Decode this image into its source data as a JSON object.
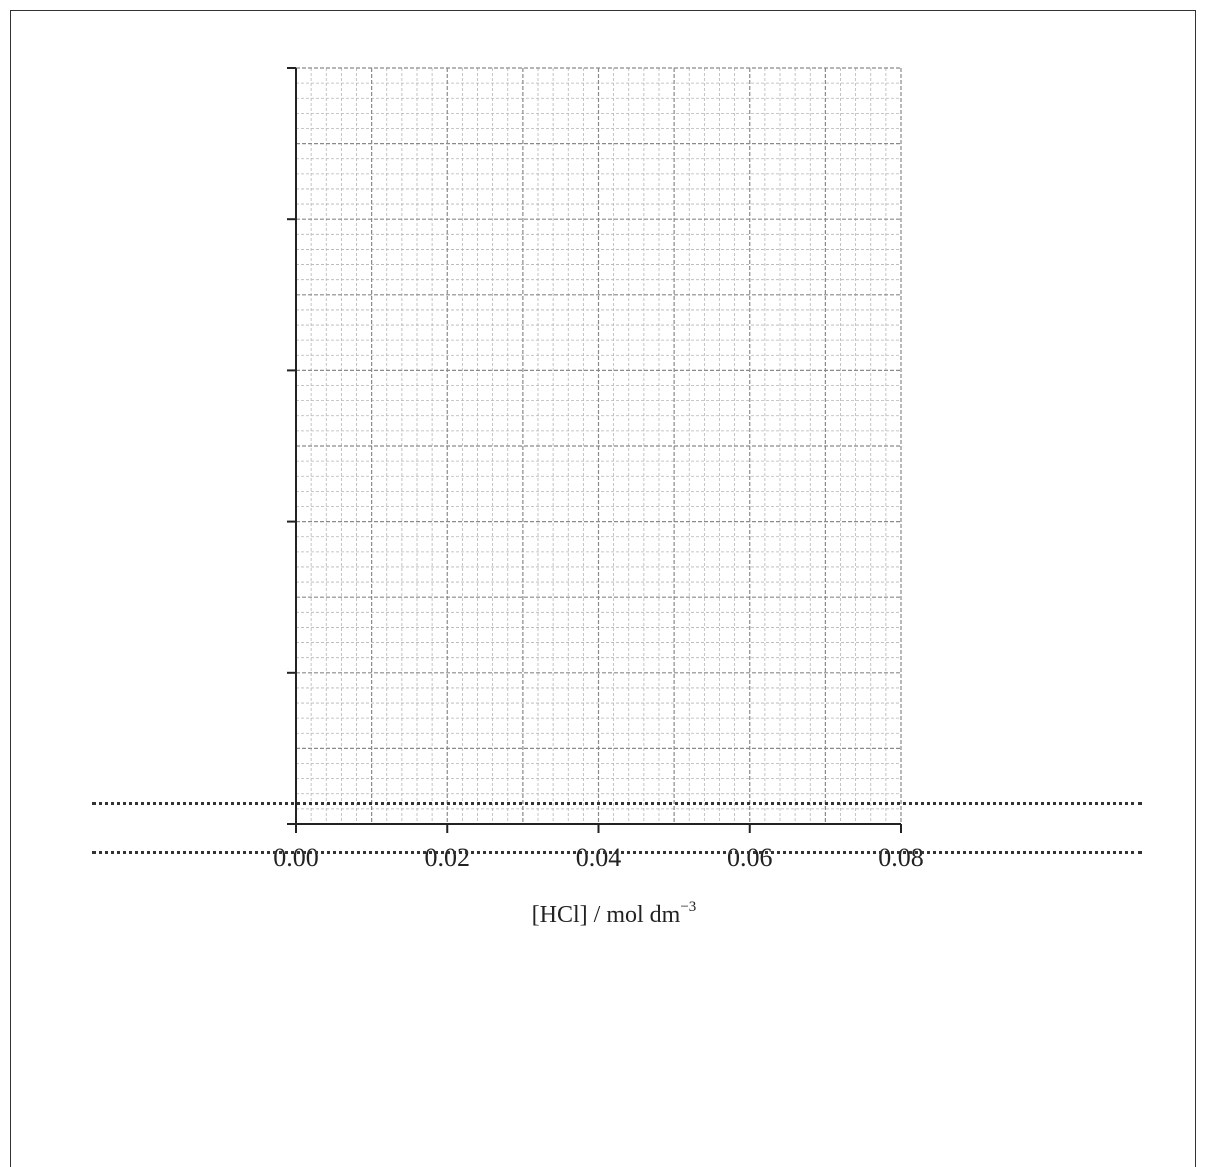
{
  "chart_data": {
    "type": "scatter",
    "title": "",
    "x_ticks": [
      "0.00",
      "0.02",
      "0.04",
      "0.06",
      "0.08"
    ],
    "xlim": [
      0,
      0.08
    ],
    "xlabel": "[HCl] / mol dm",
    "xlabel_superscript": "−3",
    "ylabel": "",
    "y_major_ticks_unlabeled": 5,
    "grid": true,
    "series": []
  },
  "answer_lines": 2
}
